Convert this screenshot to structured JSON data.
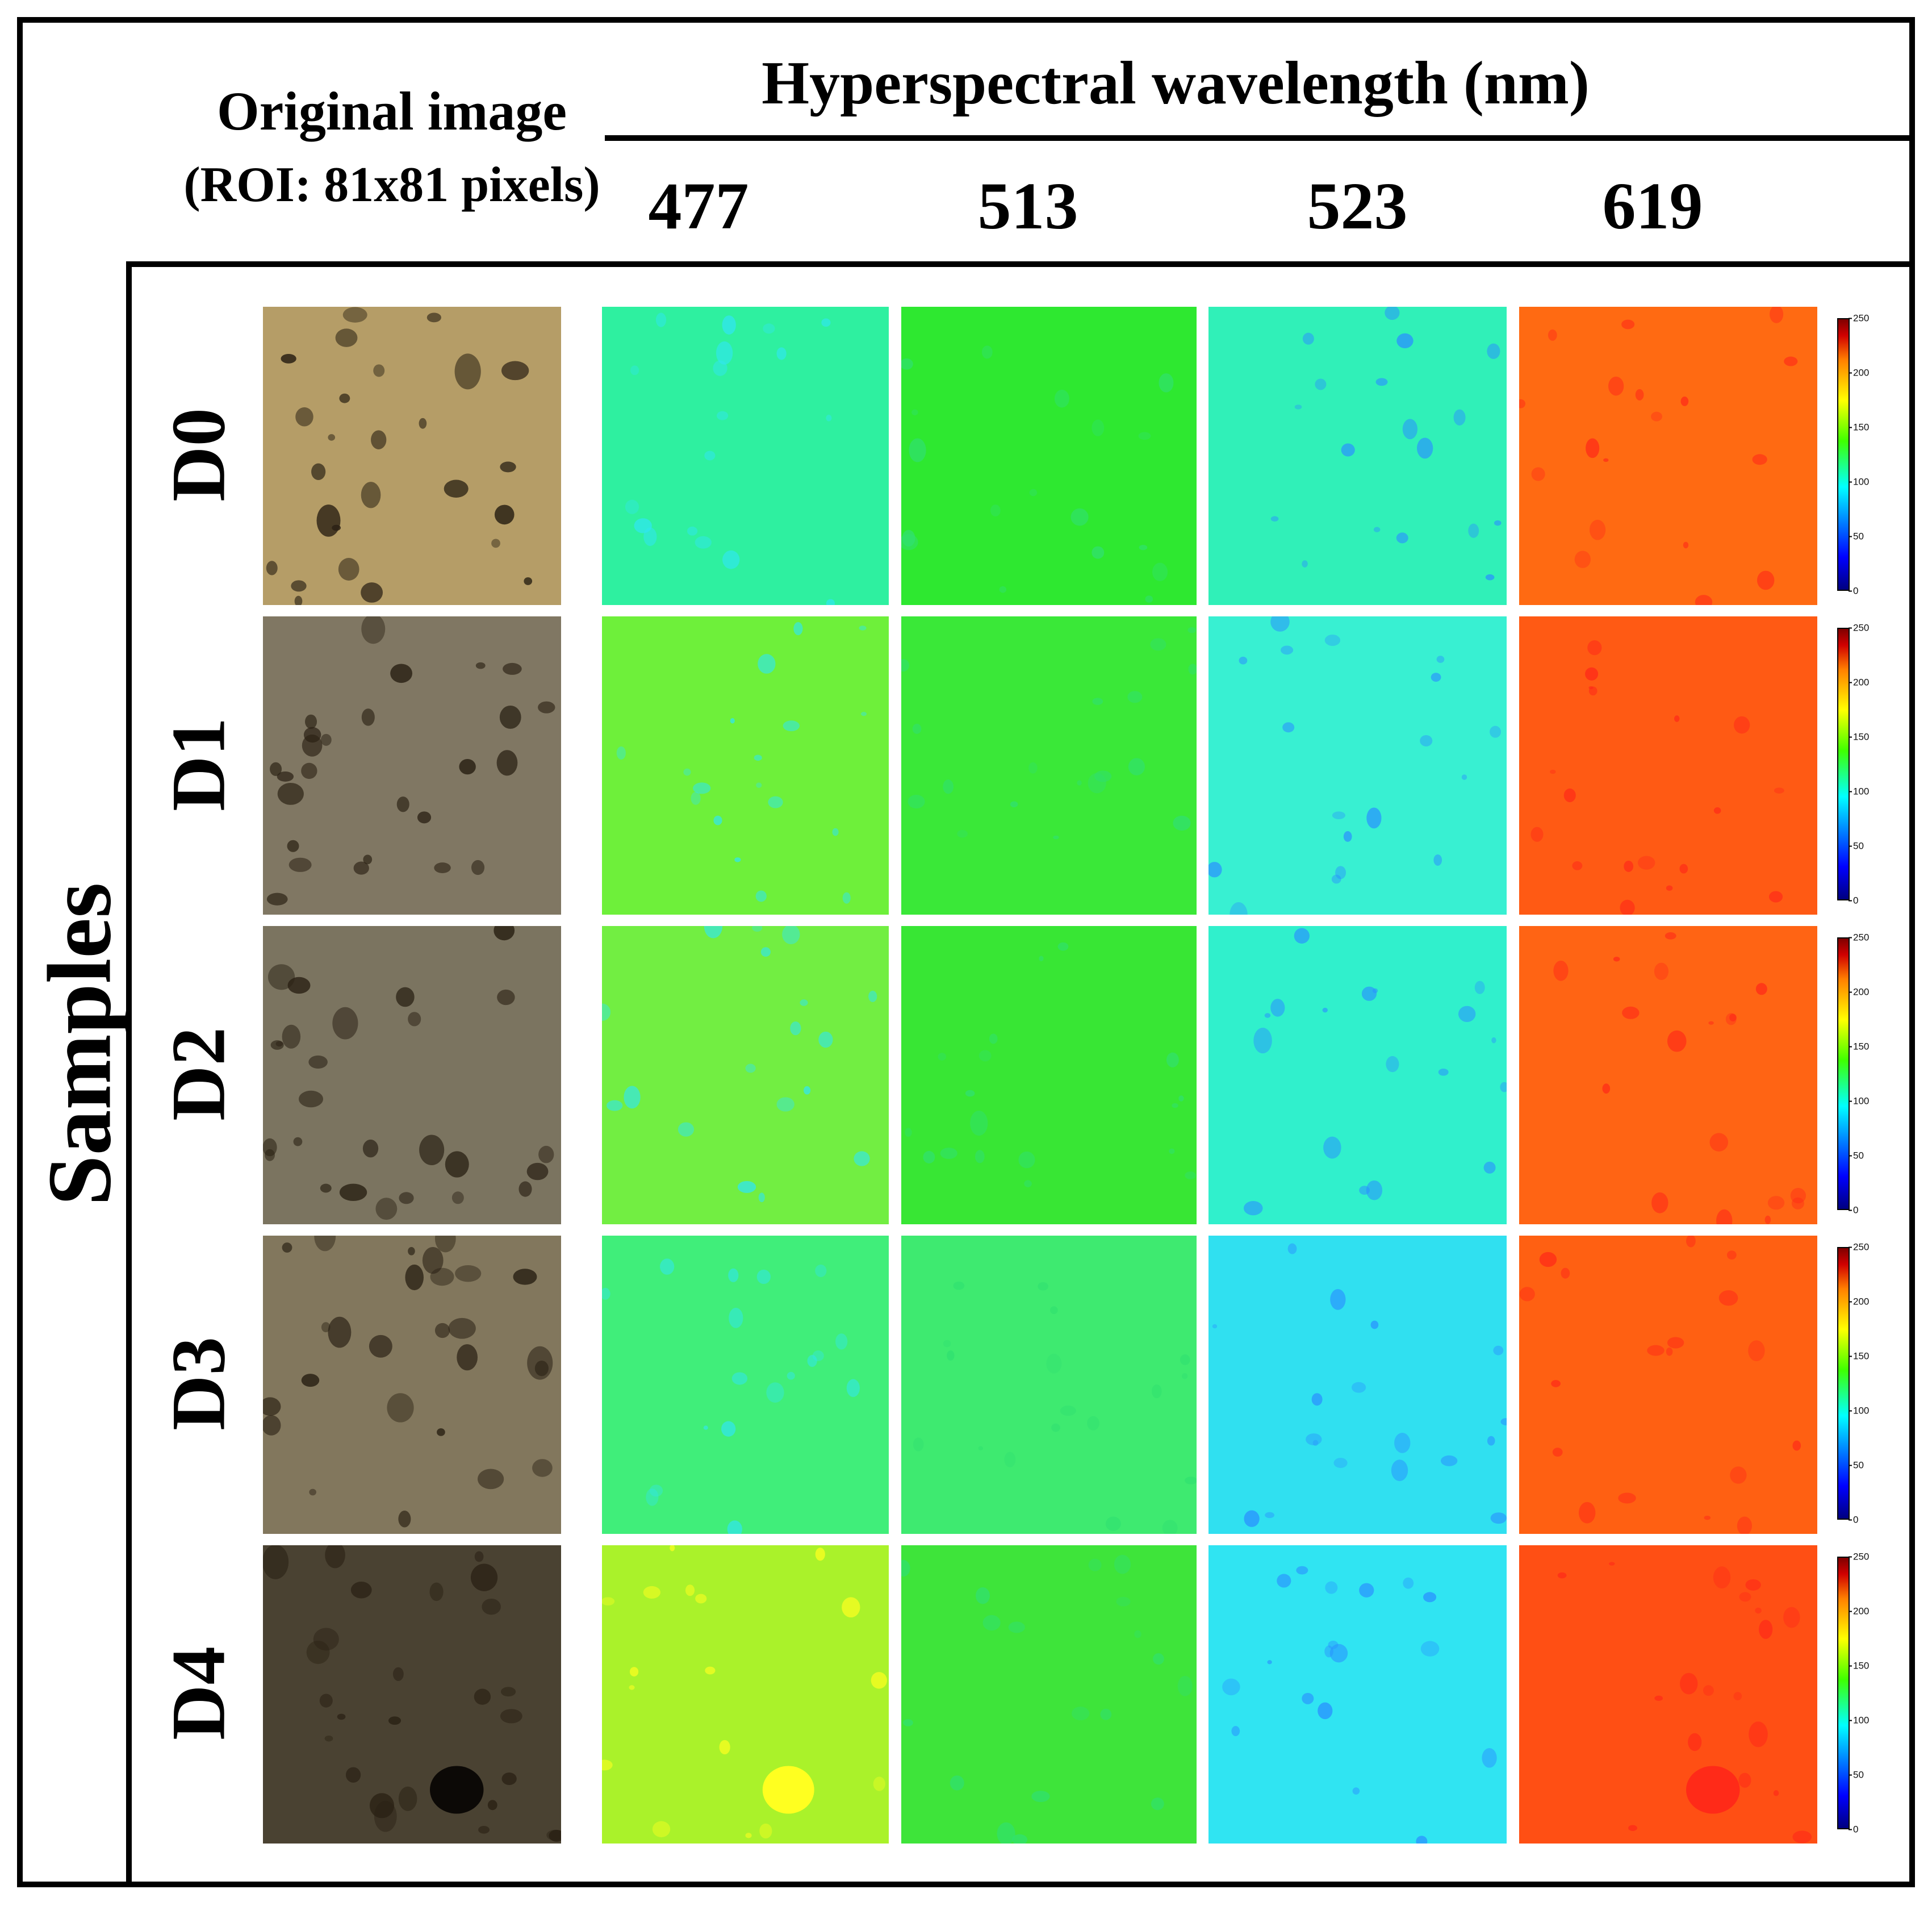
{
  "header": {
    "original_title": "Original image",
    "roi_label": "(ROI: 81x81 pixels)",
    "spectral_title": "Hyperspectral wavelength (nm)",
    "wavelengths": [
      "477",
      "513",
      "523",
      "619"
    ]
  },
  "side_label": "Samples",
  "samples": [
    "D0",
    "D1",
    "D2",
    "D3",
    "D4"
  ],
  "colorbar": {
    "ticks": [
      "250",
      "200",
      "150",
      "100",
      "50",
      "0"
    ],
    "colormap": "jet"
  },
  "tile_colors": {
    "photo": [
      "#b59d67",
      "#807763",
      "#7b7460",
      "#82775d",
      "#4a4232"
    ],
    "w477": [
      "#2ef0a0",
      "#6ef03a",
      "#72ee42",
      "#40ee7a",
      "#aaf22a"
    ],
    "w513": [
      "#2ee830",
      "#3ae838",
      "#38e634",
      "#3eea70",
      "#3ee43a"
    ],
    "w523": [
      "#30f0b8",
      "#38f0d2",
      "#30f0cc",
      "#30e0f0",
      "#30e4f2"
    ],
    "w619": [
      "#ff6a12",
      "#ff5a14",
      "#ff6414",
      "#ff6012",
      "#ff4f14"
    ]
  },
  "spot_colors": {
    "photo": "#2a2114",
    "w477": "#30e6f0",
    "w513": "#30e070",
    "w523": "#2a90ff",
    "w619": "#ff2a18",
    "w477_d4": "#ffff20"
  }
}
